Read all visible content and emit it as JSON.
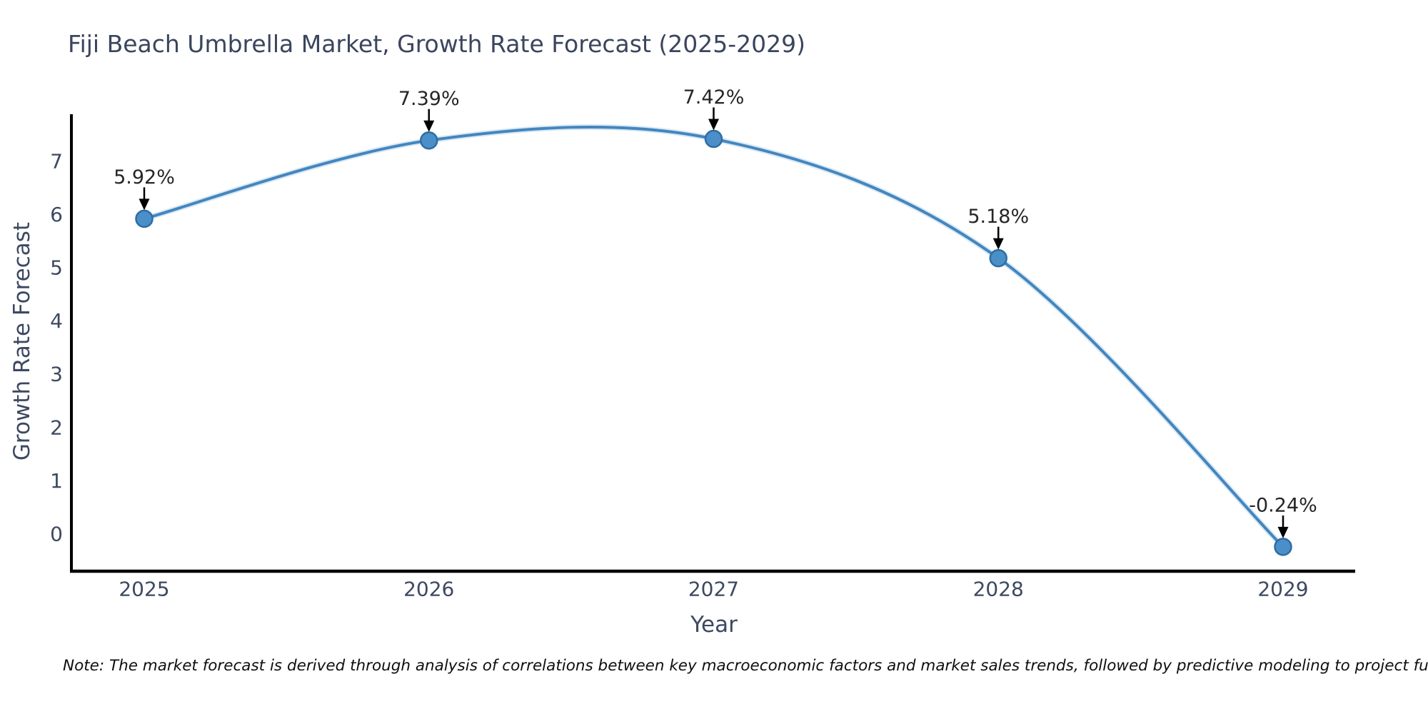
{
  "chart": {
    "note": "Note: The market forecast is derived through analysis of correlations between key macroeconomic factors and market sales trends, followed by predictive modeling to project future sales."
  },
  "chart_data": {
    "type": "line",
    "title": "Fiji Beach Umbrella Market, Growth Rate Forecast (2025-2029)",
    "xlabel": "Year",
    "ylabel": "Growth Rate Forecast",
    "x": [
      2025,
      2026,
      2027,
      2028,
      2029
    ],
    "values": [
      5.92,
      7.39,
      7.42,
      5.18,
      -0.24
    ],
    "point_labels": [
      "5.92%",
      "7.39%",
      "7.42%",
      "5.18%",
      "-0.24%"
    ],
    "yticks": [
      0,
      1,
      2,
      3,
      4,
      5,
      6,
      7
    ],
    "ylim": [
      -0.73,
      7.88
    ],
    "grid": false,
    "legend_position": "none",
    "smooth": true,
    "colors": {
      "line": "#4486be",
      "line_halo": "#a8cde8",
      "marker_fill": "#4a8fc7",
      "marker_edge": "#2e6da4",
      "axis": "#000000",
      "axis_text": "#3d4961",
      "annotation_text": "#262626",
      "annotation_arrow": "#000000",
      "title_text": "#3a455e"
    }
  }
}
